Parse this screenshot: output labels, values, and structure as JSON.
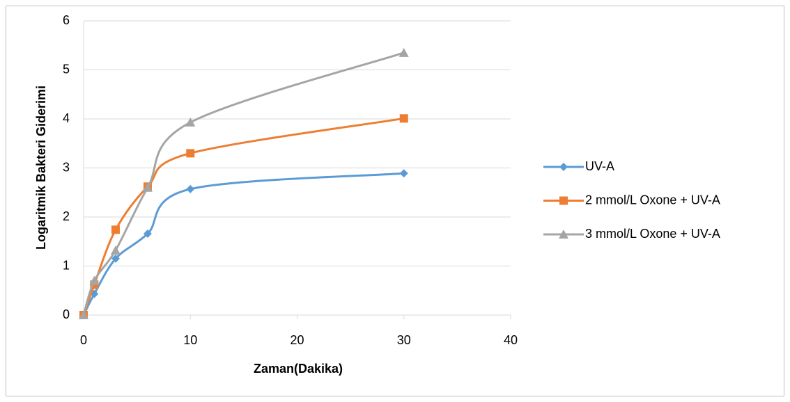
{
  "chart_data": {
    "type": "line",
    "smooth": true,
    "x_label": "Zaman(Dakika)",
    "y_label": "Logaritmik Bakteri Giderimi",
    "x": [
      0,
      1,
      3,
      6,
      10,
      30
    ],
    "series": [
      {
        "name": "UV-A",
        "color": "#5b9bd5",
        "marker": "diamond",
        "values": [
          0,
          0.43,
          1.15,
          1.66,
          2.57,
          2.89
        ]
      },
      {
        "name": "2 mmol/L Oxone + UV-A",
        "color": "#ed7d31",
        "marker": "square",
        "values": [
          0,
          0.62,
          1.74,
          2.62,
          3.3,
          4.01
        ]
      },
      {
        "name": "3 mmol/L Oxone + UV-A",
        "color": "#a5a5a5",
        "marker": "triangle",
        "values": [
          0,
          0.7,
          1.32,
          2.6,
          3.93,
          5.35
        ]
      }
    ],
    "xlim": [
      0,
      40
    ],
    "xticks": [
      0,
      10,
      20,
      30,
      40
    ],
    "ylim": [
      0,
      6
    ],
    "yticks": [
      0,
      1,
      2,
      3,
      4,
      5,
      6
    ],
    "grid": true,
    "legend": "right"
  }
}
